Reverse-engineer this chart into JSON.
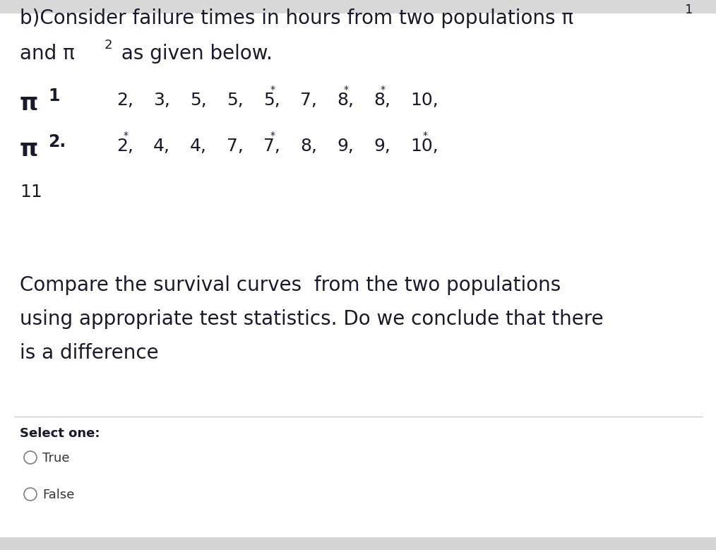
{
  "bg_top": "#f0f0f0",
  "bg_main": "#ffffff",
  "bg_bottom": "#e8e8e8",
  "text_color": "#1a1a2e",
  "text_color_options": "#8b0000",
  "title_fs": 20,
  "body_fs": 18,
  "label_fs": 22,
  "select_fs": 13,
  "option_fs": 13,
  "line1": "b)Consider failure times in hours from two populations π",
  "line1_sub": "1",
  "line2a": "and π",
  "line2_sub": "2",
  "line2b": " as given below.",
  "pi1_label": "π",
  "pi1_sub": "1",
  "pi2_label": "π",
  "pi2_sub": "2.",
  "pi1_items": [
    "2,",
    "3,",
    "5,",
    "5,",
    "5*,",
    "7,",
    "8*,",
    "8*,",
    "10"
  ],
  "pi2_items": [
    "2*,",
    "4,",
    "4,",
    "7,",
    "7*,",
    "8,",
    "9,",
    "9,",
    "10*,"
  ],
  "line_11": "11",
  "question": "Compare the survival curves  from the two populations\nusing appropriate test statistics. Do we conclude that there\nis a difference",
  "select_one": "Select one:",
  "opt_true": "True",
  "opt_false": "False",
  "divider_color": "#cccccc",
  "circle_color": "#888888"
}
